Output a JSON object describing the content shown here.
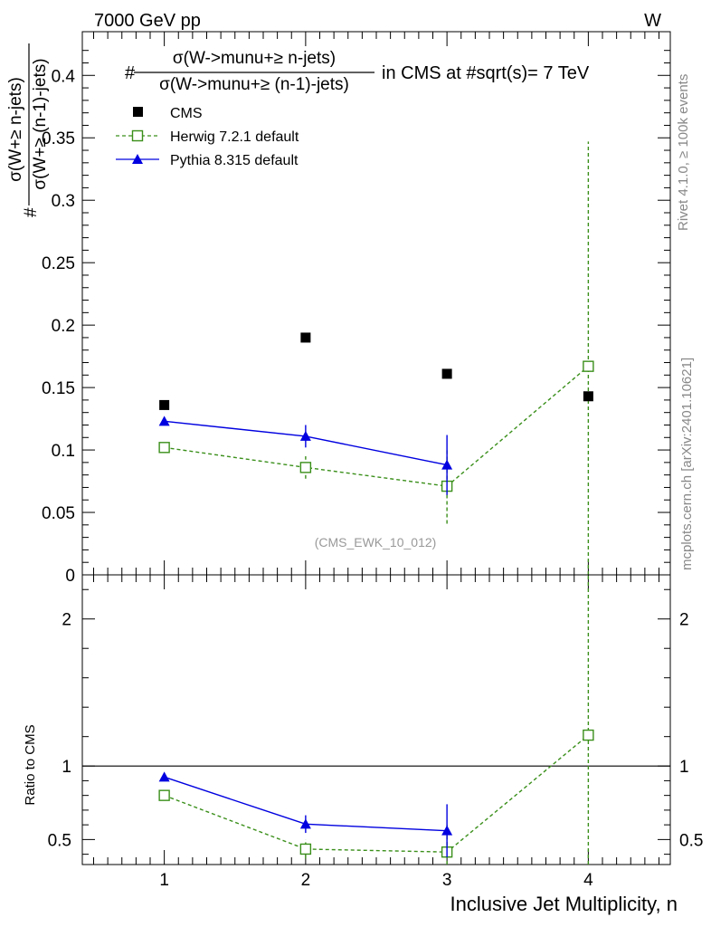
{
  "header": {
    "left_label": "7000 GeV pp",
    "right_label": "W"
  },
  "side_labels": {
    "rivet": "Rivet 4.1.0, ≥ 100k events",
    "mcplots": "mcplots.cern.ch [arXiv:2401.10621]"
  },
  "chart_data": [
    {
      "type": "scatter",
      "panel": "main",
      "title": {
        "numerator": "σ(W->munu+≥ n-jets)",
        "denominator": "σ(W->munu+≥ (n-1)-jets)",
        "prefix": "#",
        "suffix": "in CMS at #sqrt(s)= 7 TeV"
      },
      "ylabel": {
        "prefix": "#",
        "numerator": "σ(W+≥ n-jets)",
        "denominator": "σ(W+≥ (n-1)-jets)"
      },
      "watermark": "(CMS_EWK_10_012)",
      "xlim": [
        0.42,
        4.58
      ],
      "ylim": [
        0,
        0.435
      ],
      "yticks": [
        0,
        0.05,
        0.1,
        0.15,
        0.2,
        0.25,
        0.3,
        0.35,
        0.4
      ],
      "ytick_labels": [
        "0",
        "0.05",
        "0.1",
        "0.15",
        "0.2",
        "0.25",
        "0.3",
        "0.35",
        "0.4"
      ],
      "series": [
        {
          "name": "CMS",
          "style": "marker",
          "color": "#000000",
          "x": [
            1,
            2,
            3,
            4
          ],
          "y": [
            0.136,
            0.19,
            0.161,
            0.143
          ],
          "err": [
            0,
            0,
            0,
            0
          ]
        },
        {
          "name": "Herwig 7.2.1 default",
          "style": "dashed-open-square",
          "color": "#3a8f1a",
          "x": [
            1,
            2,
            3,
            4
          ],
          "y": [
            0.102,
            0.086,
            0.071,
            0.167
          ],
          "err": [
            0.002,
            0.009,
            0.03,
            0.18
          ]
        },
        {
          "name": "Pythia 8.315 default",
          "style": "solid-triangle",
          "color": "#0000e0",
          "x": [
            1,
            2,
            3
          ],
          "y": [
            0.123,
            0.111,
            0.088
          ],
          "err": [
            0.003,
            0.009,
            0.024
          ]
        }
      ]
    },
    {
      "type": "scatter",
      "panel": "ratio",
      "ylabel": "Ratio to CMS",
      "xlabel": "Inclusive Jet Multiplicity, n",
      "xlim": [
        0.42,
        4.58
      ],
      "ylim": [
        0.33,
        2.3
      ],
      "xticks": [
        1,
        2,
        3,
        4
      ],
      "xtick_labels": [
        "1",
        "2",
        "3",
        "4"
      ],
      "yticks": [
        0.5,
        1,
        2
      ],
      "ytick_labels": [
        "0.5",
        "1",
        "2"
      ],
      "reference_line": 1,
      "series": [
        {
          "name": "Herwig 7.2.1 default",
          "style": "dashed-open-square",
          "color": "#3a8f1a",
          "x": [
            1,
            2,
            3,
            4
          ],
          "y": [
            0.8,
            0.435,
            0.415,
            1.21
          ],
          "err": [
            0.015,
            0.065,
            0.185,
            1.3
          ]
        },
        {
          "name": "Pythia 8.315 default",
          "style": "solid-triangle",
          "color": "#0000e0",
          "x": [
            1,
            2,
            3
          ],
          "y": [
            0.925,
            0.605,
            0.56
          ],
          "err": [
            0.022,
            0.06,
            0.18
          ]
        }
      ]
    }
  ]
}
